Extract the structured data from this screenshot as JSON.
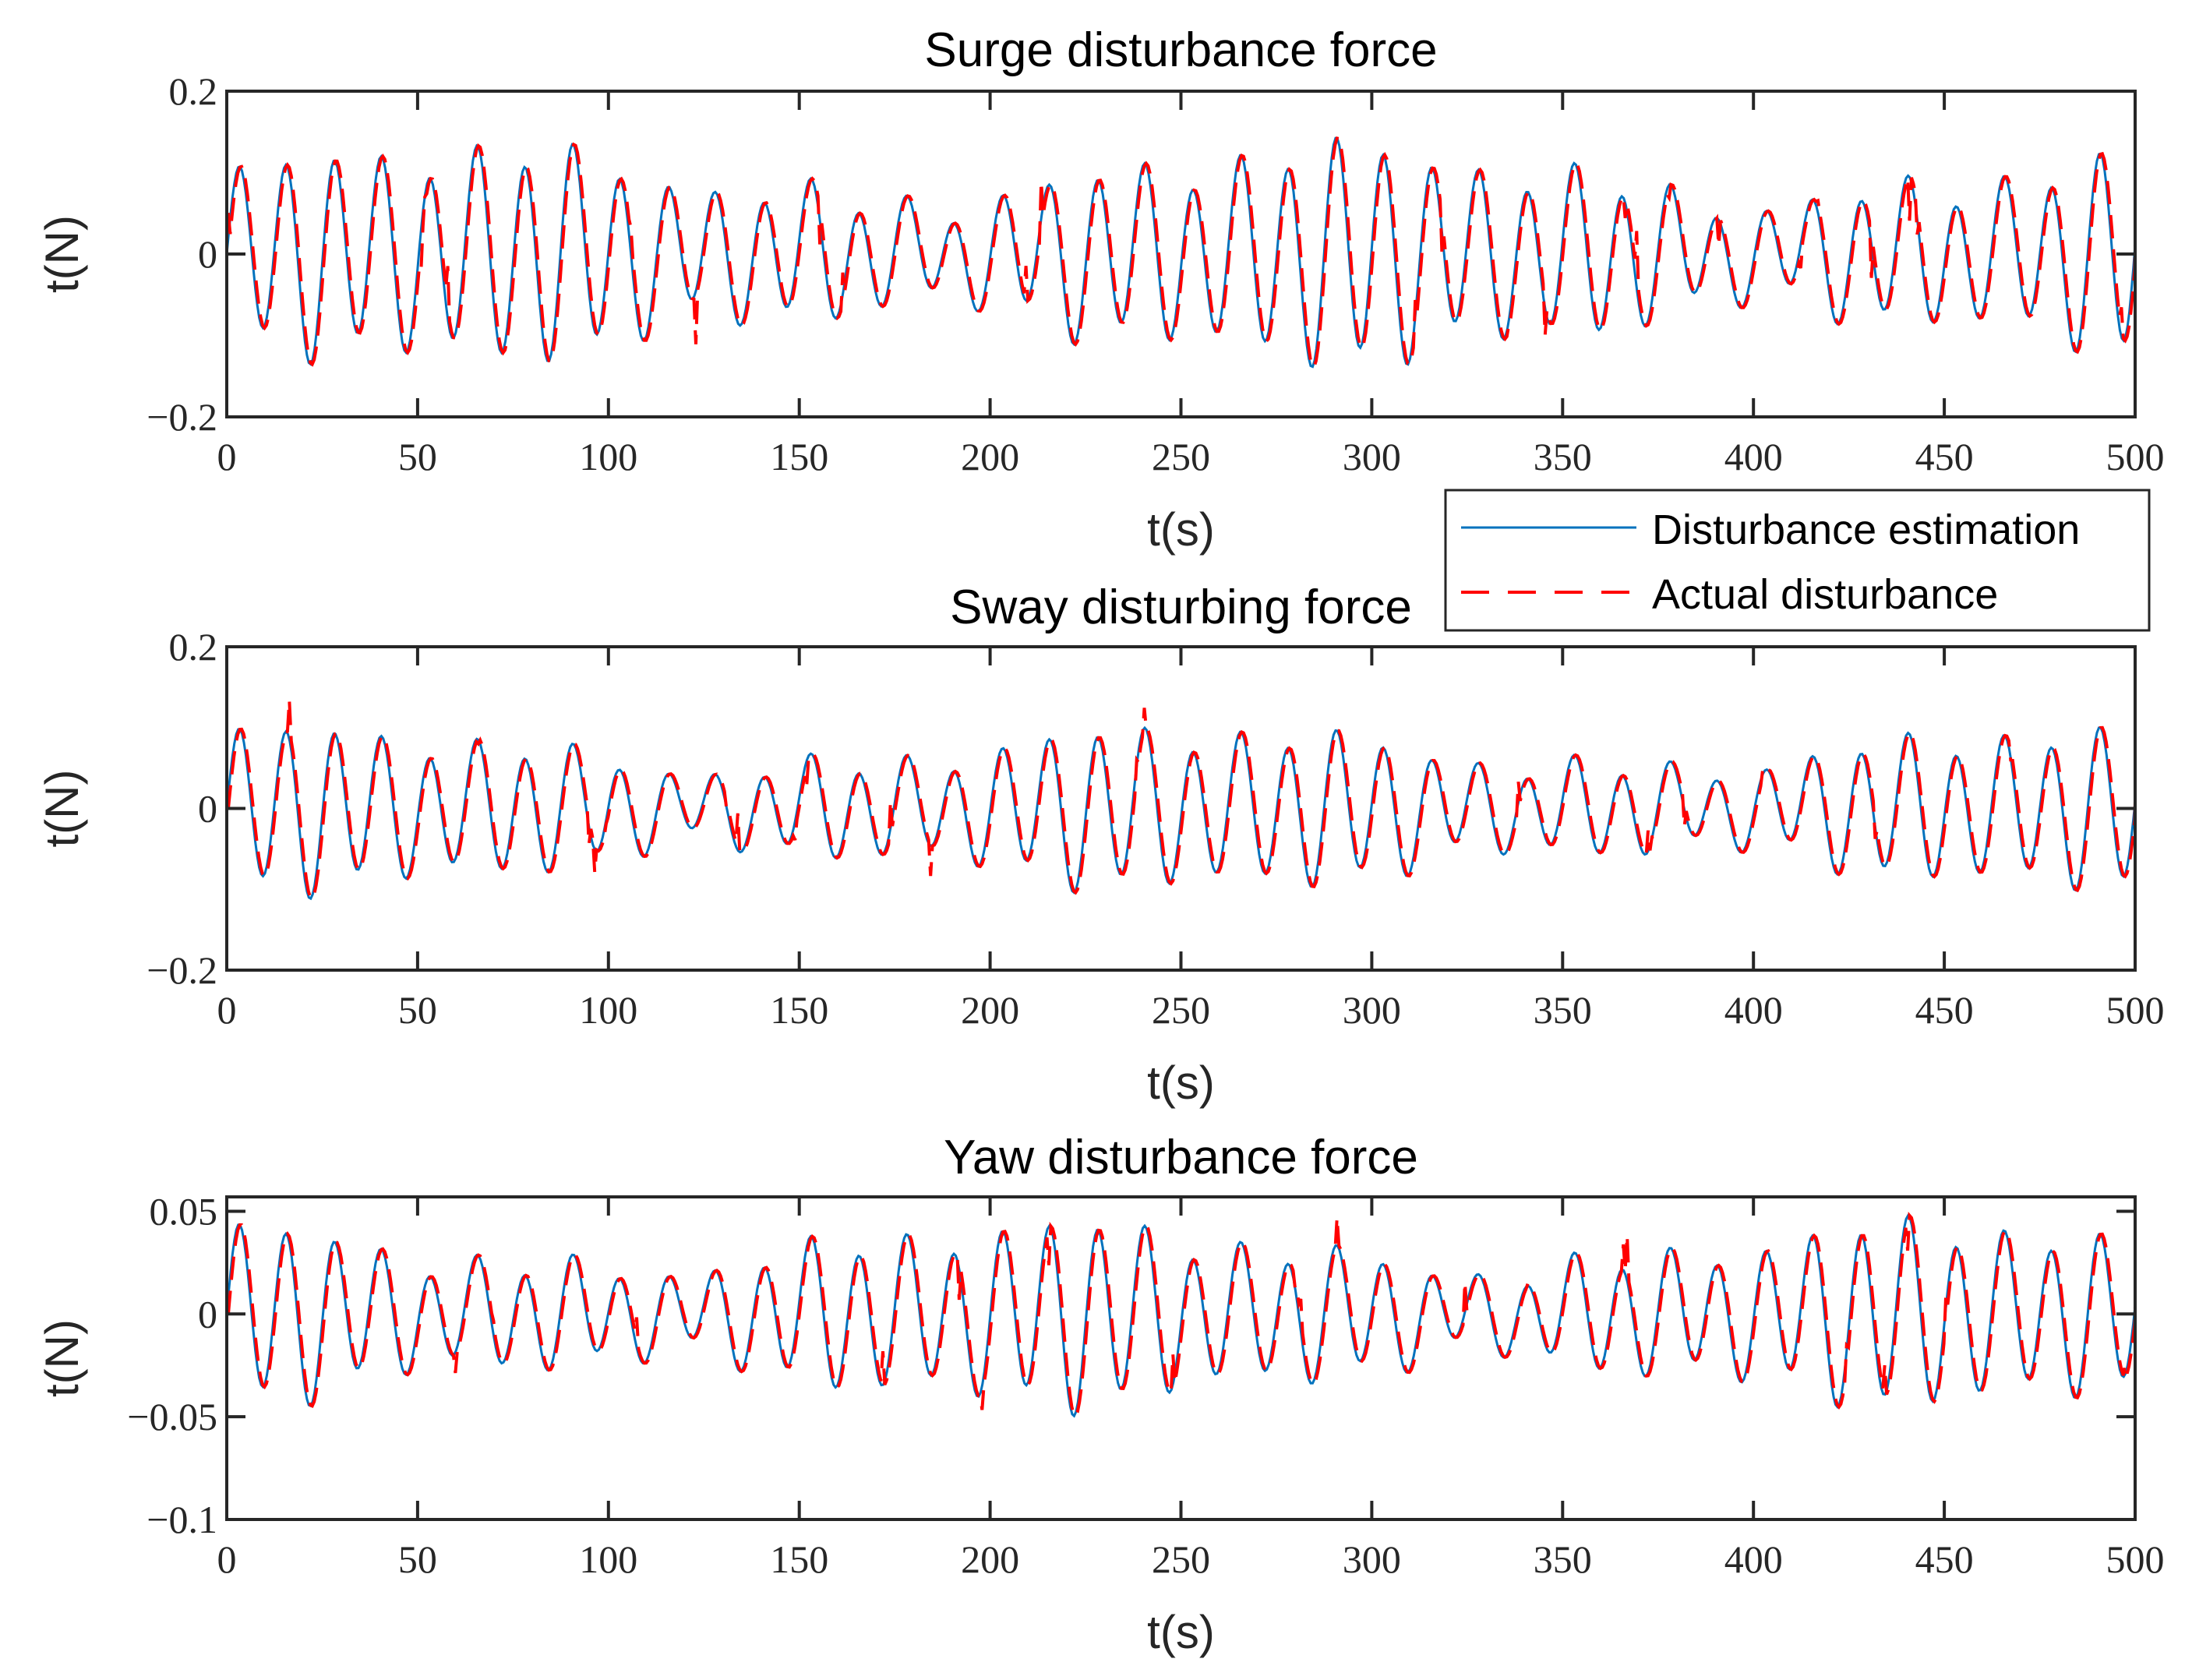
{
  "chart_data": [
    {
      "type": "line",
      "title": "Surge disturbance force",
      "xlabel": "t(s)",
      "ylabel": "t(N)",
      "xlim": [
        0,
        500
      ],
      "ylim": [
        -0.2,
        0.2
      ],
      "xticks": [
        0,
        50,
        100,
        150,
        200,
        250,
        300,
        350,
        400,
        450,
        500
      ],
      "yticks": [
        -0.2,
        0,
        0.2
      ],
      "ytick_labels": [
        "−0.2",
        "0",
        "0.2"
      ],
      "grid": false,
      "approx_period_s": 12.5,
      "series": [
        {
          "name": "Disturbance estimation",
          "color": "#0072BD",
          "style": "solid",
          "approx_amplitude": 0.12,
          "range": [
            -0.15,
            0.18
          ]
        },
        {
          "name": "Actual disturbance",
          "color": "#FF0000",
          "style": "dashed",
          "approx_amplitude": 0.12,
          "range": [
            -0.18,
            0.18
          ]
        }
      ]
    },
    {
      "type": "line",
      "title": "Sway disturbing force",
      "xlabel": "t(s)",
      "ylabel": "t(N)",
      "xlim": [
        0,
        500
      ],
      "ylim": [
        -0.2,
        0.2
      ],
      "xticks": [
        0,
        50,
        100,
        150,
        200,
        250,
        300,
        350,
        400,
        450,
        500
      ],
      "yticks": [
        -0.2,
        0,
        0.2
      ],
      "ytick_labels": [
        "−0.2",
        "0",
        "0.2"
      ],
      "grid": false,
      "approx_period_s": 12.5,
      "series": [
        {
          "name": "Disturbance estimation",
          "color": "#0072BD",
          "style": "solid",
          "approx_amplitude": 0.09,
          "range": [
            -0.1,
            0.16
          ]
        },
        {
          "name": "Actual disturbance",
          "color": "#FF0000",
          "style": "dashed",
          "approx_amplitude": 0.09,
          "range": [
            -0.15,
            0.16
          ]
        }
      ]
    },
    {
      "type": "line",
      "title": "Yaw disturbance force",
      "xlabel": "t(s)",
      "ylabel": "t(N)",
      "xlim": [
        0,
        500
      ],
      "ylim": [
        -0.1,
        0.057
      ],
      "xticks": [
        0,
        50,
        100,
        150,
        200,
        250,
        300,
        350,
        400,
        450,
        500
      ],
      "yticks": [
        -0.1,
        -0.05,
        0,
        0.05
      ],
      "ytick_labels": [
        "−0.1",
        "−0.05",
        "0",
        "0.05"
      ],
      "grid": false,
      "approx_period_s": 12.5,
      "series": [
        {
          "name": "Disturbance estimation",
          "color": "#0072BD",
          "style": "solid",
          "approx_amplitude": 0.04,
          "range": [
            -0.055,
            0.055
          ]
        },
        {
          "name": "Actual disturbance",
          "color": "#FF0000",
          "style": "dashed",
          "approx_amplitude": 0.04,
          "range": [
            -0.07,
            0.055
          ]
        }
      ]
    }
  ],
  "legend": {
    "position": "between first and second subplot, right",
    "entries": [
      {
        "label": "Disturbance estimation",
        "color": "#0072BD",
        "style": "solid"
      },
      {
        "label": "Actual disturbance",
        "color": "#FF0000",
        "style": "dashed"
      }
    ]
  },
  "colors": {
    "estimation": "#0072BD",
    "actual": "#FF0000",
    "axes": "#262626"
  }
}
